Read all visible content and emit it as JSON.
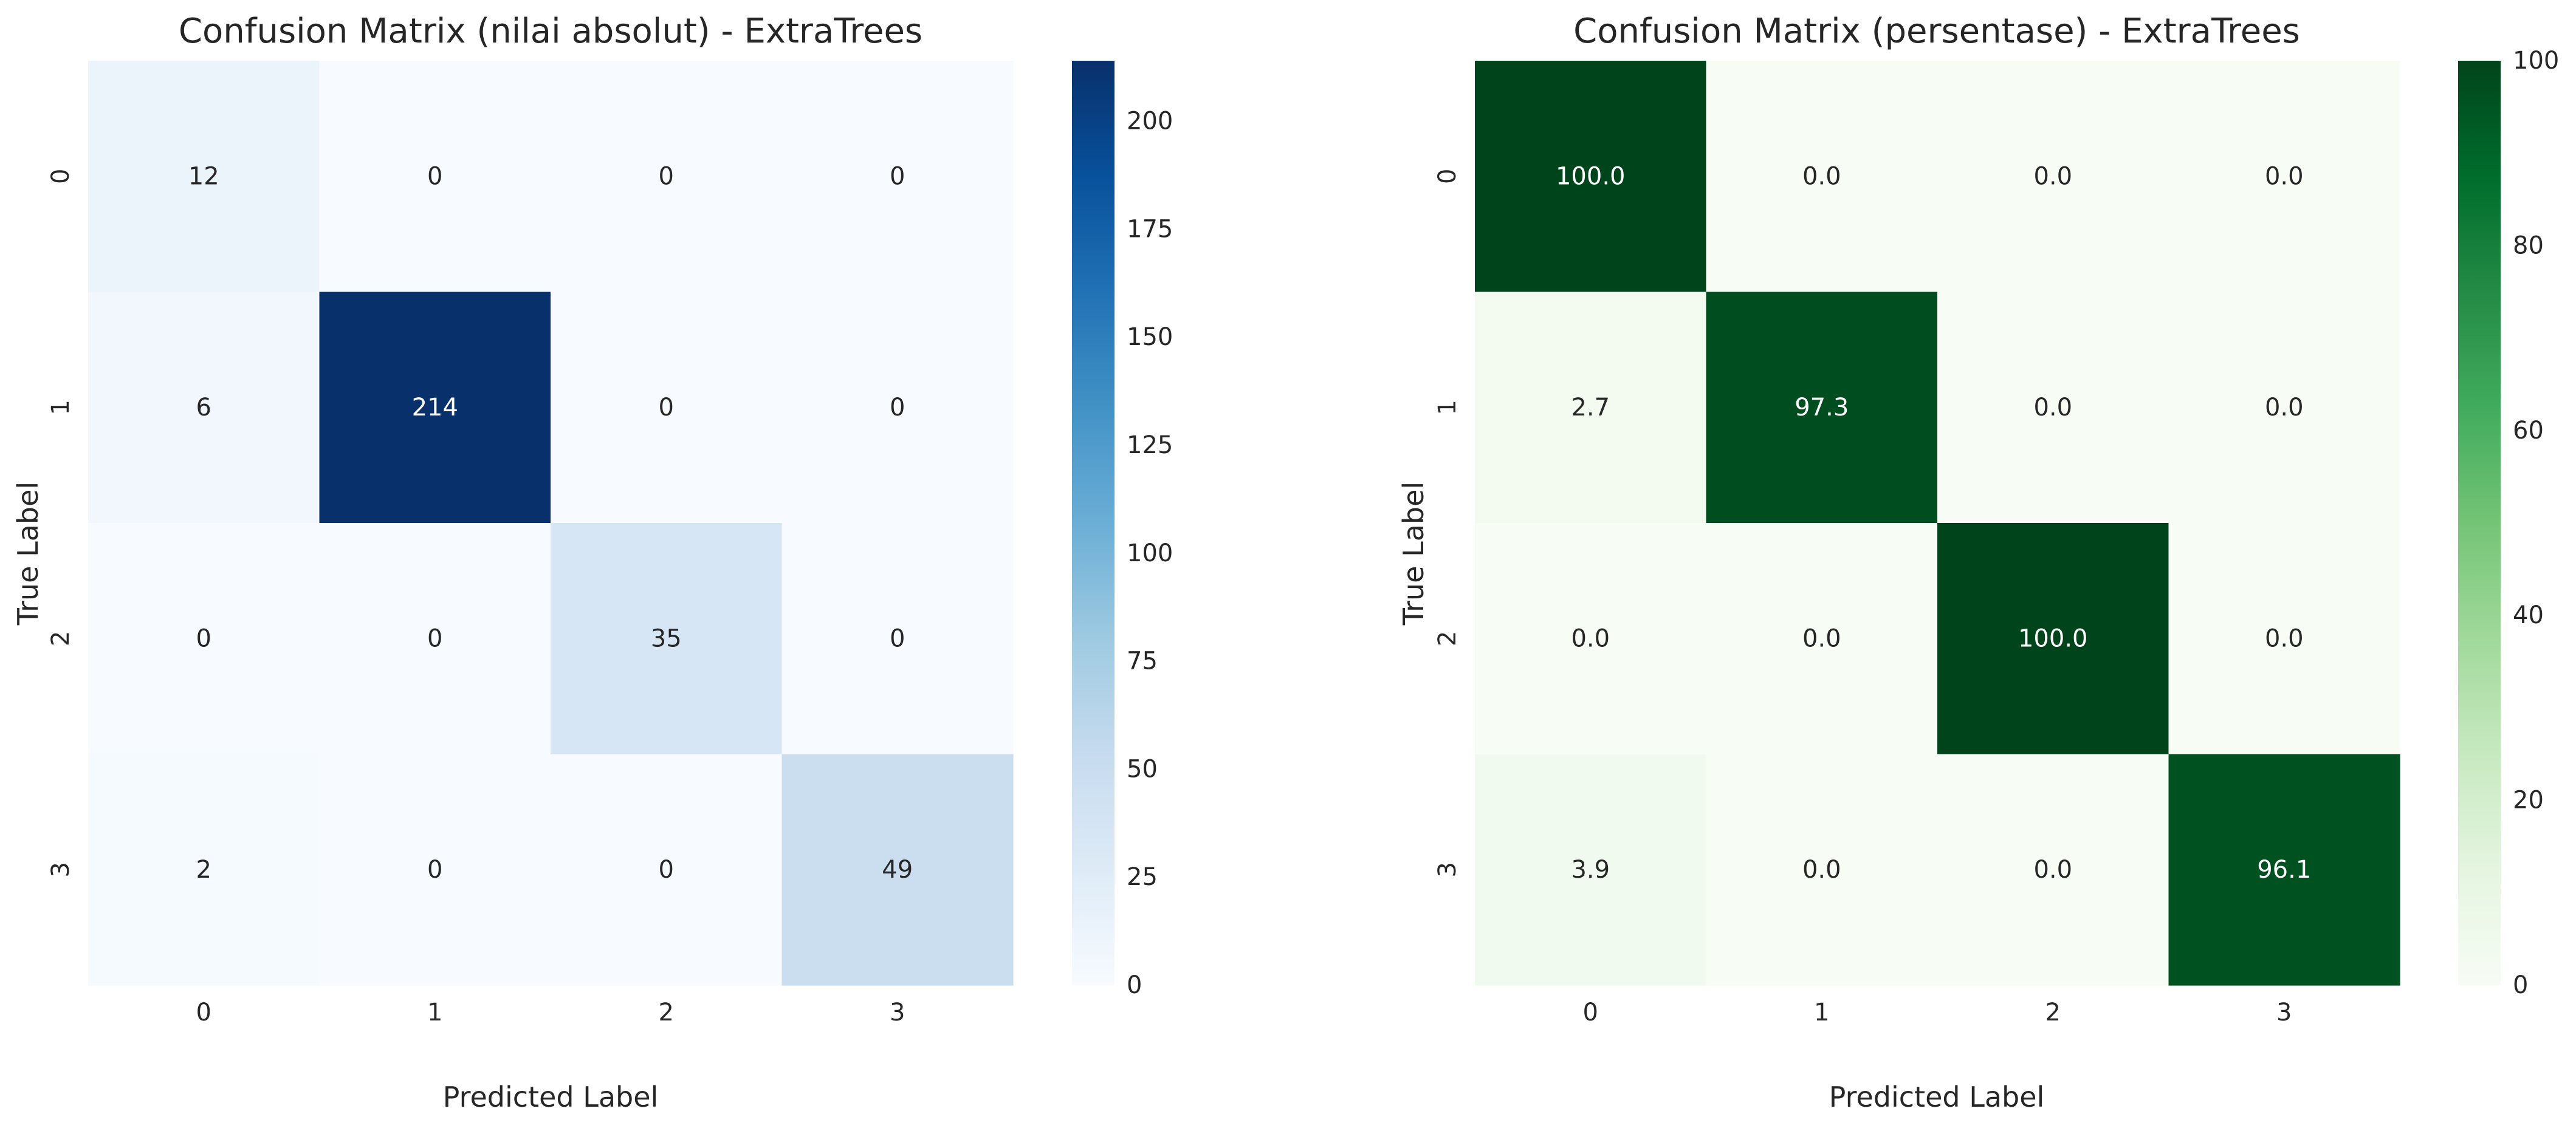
{
  "chart_data": [
    {
      "type": "heatmap",
      "title": "Confusion Matrix (nilai absolut) - ExtraTrees",
      "xlabel": "Predicted Label",
      "ylabel": "True Label",
      "x_categories": [
        "0",
        "1",
        "2",
        "3"
      ],
      "y_categories": [
        "0",
        "1",
        "2",
        "3"
      ],
      "values": [
        [
          12,
          0,
          0,
          0
        ],
        [
          6,
          214,
          0,
          0
        ],
        [
          0,
          0,
          35,
          0
        ],
        [
          2,
          0,
          0,
          49
        ]
      ],
      "value_format": "integer",
      "colormap": "Blues",
      "colorbar": {
        "range": [
          0,
          214
        ],
        "ticks": [
          0,
          25,
          50,
          75,
          100,
          125,
          150,
          175,
          200
        ],
        "tick_labels": [
          "0",
          "25",
          "50",
          "75",
          "100",
          "125",
          "150",
          "175",
          "200"
        ]
      }
    },
    {
      "type": "heatmap",
      "title": "Confusion Matrix (persentase) - ExtraTrees",
      "xlabel": "Predicted Label",
      "ylabel": "True Label",
      "x_categories": [
        "0",
        "1",
        "2",
        "3"
      ],
      "y_categories": [
        "0",
        "1",
        "2",
        "3"
      ],
      "values": [
        [
          100.0,
          0.0,
          0.0,
          0.0
        ],
        [
          2.7,
          97.3,
          0.0,
          0.0
        ],
        [
          0.0,
          0.0,
          100.0,
          0.0
        ],
        [
          3.9,
          0.0,
          0.0,
          96.1
        ]
      ],
      "value_format": "one-decimal",
      "colormap": "Greens",
      "colorbar": {
        "range": [
          0,
          100
        ],
        "ticks": [
          0,
          20,
          40,
          60,
          80,
          100
        ],
        "tick_labels": [
          "0",
          "20",
          "40",
          "60",
          "80",
          "100"
        ]
      }
    }
  ]
}
